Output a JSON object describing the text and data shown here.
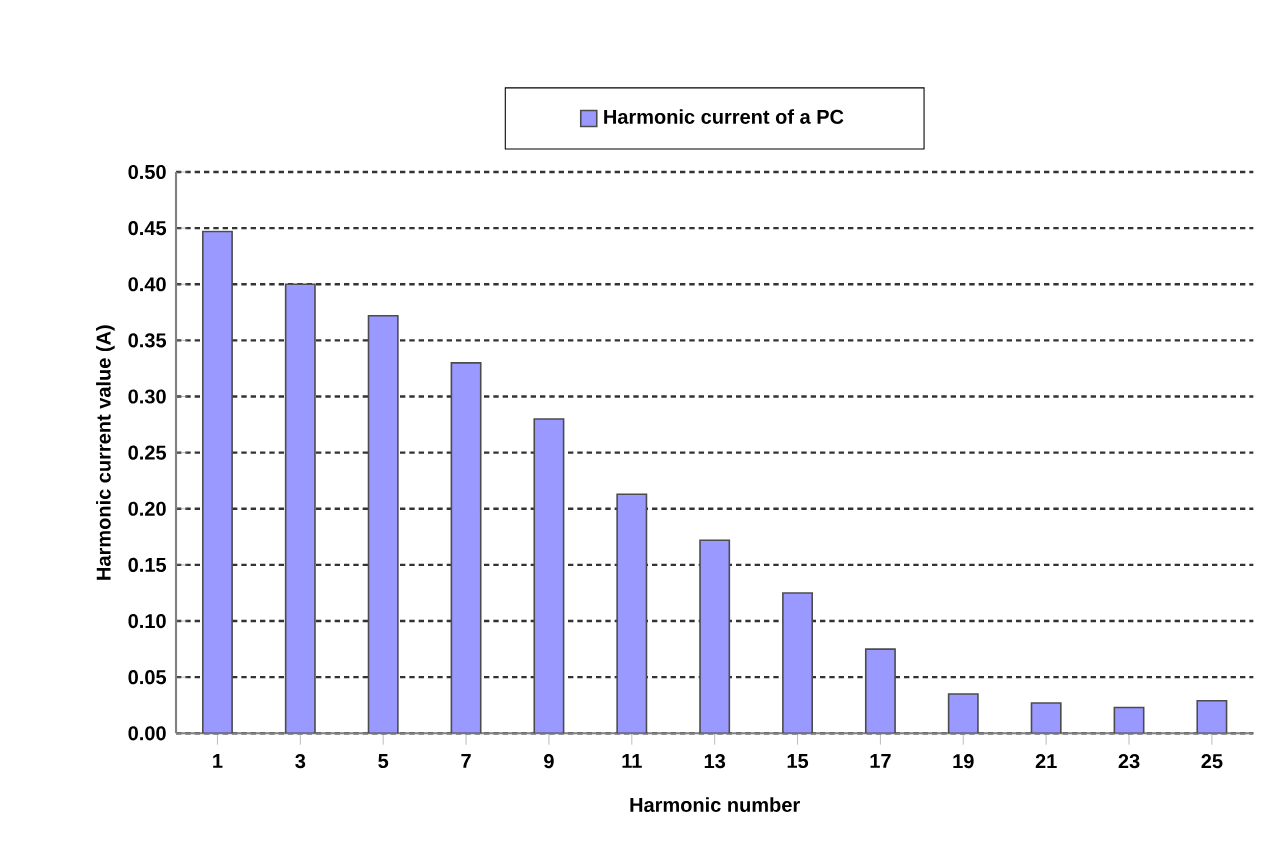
{
  "chart_data": {
    "type": "bar",
    "xlabel": "Harmonic number",
    "ylabel": "Harmonic current value (A)",
    "categories": [
      "1",
      "3",
      "5",
      "7",
      "9",
      "11",
      "13",
      "15",
      "17",
      "19",
      "21",
      "23",
      "25"
    ],
    "series": [
      {
        "name": "Harmonic current of a PC",
        "color": "#9999ff",
        "values": [
          0.447,
          0.4,
          0.372,
          0.33,
          0.28,
          0.213,
          0.172,
          0.125,
          0.075,
          0.035,
          0.027,
          0.023,
          0.029
        ]
      }
    ],
    "ylim": [
      0,
      0.5
    ],
    "yticks": [
      {
        "value": 0,
        "label": "0.00"
      },
      {
        "value": 0.05,
        "label": "0.05"
      },
      {
        "value": 0.1,
        "label": "0.10"
      },
      {
        "value": 0.15,
        "label": "0.15"
      },
      {
        "value": 0.2,
        "label": "0.20"
      },
      {
        "value": 0.25,
        "label": "0.25"
      },
      {
        "value": 0.3,
        "label": "0.30"
      },
      {
        "value": 0.35,
        "label": "0.35"
      },
      {
        "value": 0.4,
        "label": "0.40"
      },
      {
        "value": 0.45,
        "label": "0.45"
      },
      {
        "value": 0.5,
        "label": "0.50"
      }
    ],
    "grid": "y",
    "legend": "top"
  }
}
